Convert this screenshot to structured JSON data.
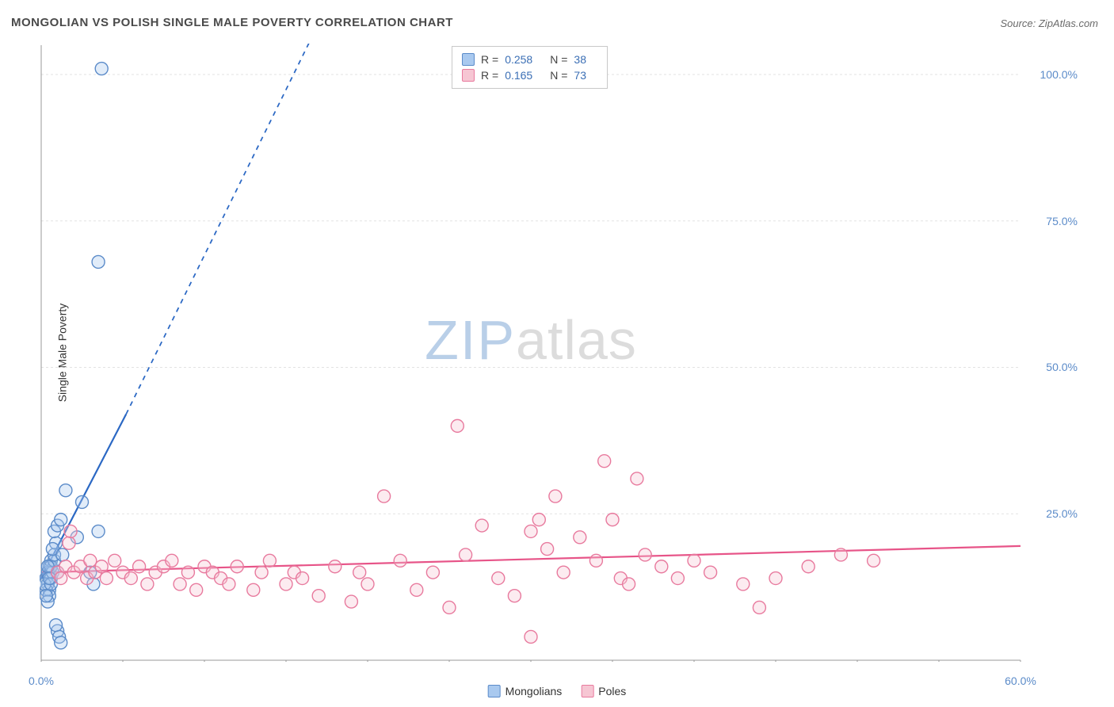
{
  "title": "MONGOLIAN VS POLISH SINGLE MALE POVERTY CORRELATION CHART",
  "source": "Source: ZipAtlas.com",
  "ylabel": "Single Male Poverty",
  "watermark": {
    "zip": "ZIP",
    "atlas": "atlas"
  },
  "chart": {
    "type": "scatter",
    "xlim": [
      0,
      60
    ],
    "ylim": [
      0,
      105
    ],
    "background_color": "#ffffff",
    "grid_color": "#e2e2e2",
    "axis_color": "#999999",
    "tick_label_color": "#5b8bc9",
    "x_ticks": [
      0,
      5,
      10,
      15,
      20,
      25,
      30,
      35,
      40,
      45,
      50,
      55,
      60
    ],
    "x_tick_labels": {
      "0": "0.0%",
      "60": "60.0%"
    },
    "y_ticks": [
      25,
      50,
      75,
      100
    ],
    "y_tick_labels": {
      "25": "25.0%",
      "50": "50.0%",
      "75": "75.0%",
      "100": "100.0%"
    },
    "marker_radius": 8,
    "marker_fill_opacity": 0.35,
    "marker_stroke_width": 1.4,
    "series": [
      {
        "name": "Mongolians",
        "color_fill": "#a9c9ef",
        "color_stroke": "#5b8bc9",
        "trend": {
          "x1": 0,
          "y1": 14,
          "x2": 5.2,
          "y2": 42,
          "solid_to_x": 5.2,
          "dash_to_x": 22,
          "dash_to_y": 137,
          "color": "#2b68c4",
          "width": 2.2
        },
        "r": "0.258",
        "n": "38",
        "points": [
          [
            0.3,
            14
          ],
          [
            0.4,
            15
          ],
          [
            0.5,
            16
          ],
          [
            0.4,
            13
          ],
          [
            0.5,
            12
          ],
          [
            0.6,
            17
          ],
          [
            0.6,
            14
          ],
          [
            0.7,
            15
          ],
          [
            0.6,
            16
          ],
          [
            0.8,
            17
          ],
          [
            0.9,
            20
          ],
          [
            1.0,
            15
          ],
          [
            0.8,
            22
          ],
          [
            1.0,
            23
          ],
          [
            1.2,
            24
          ],
          [
            1.5,
            29
          ],
          [
            2.2,
            21
          ],
          [
            2.5,
            27
          ],
          [
            3.0,
            15
          ],
          [
            3.2,
            13
          ],
          [
            3.5,
            22
          ],
          [
            0.3,
            12
          ],
          [
            0.5,
            11
          ],
          [
            0.4,
            10
          ],
          [
            3.5,
            68
          ],
          [
            3.7,
            101
          ],
          [
            1.0,
            5
          ],
          [
            1.1,
            4
          ],
          [
            1.2,
            3
          ],
          [
            0.9,
            6
          ],
          [
            0.8,
            18
          ],
          [
            0.7,
            19
          ],
          [
            0.2,
            13
          ],
          [
            0.3,
            11
          ],
          [
            0.6,
            13
          ],
          [
            1.3,
            18
          ],
          [
            0.4,
            16
          ],
          [
            0.5,
            14
          ]
        ]
      },
      {
        "name": "Poles",
        "color_fill": "#f6c6d3",
        "color_stroke": "#e87a9e",
        "trend": {
          "x1": 0,
          "y1": 15,
          "x2": 60,
          "y2": 19.5,
          "color": "#e75488",
          "width": 2.2
        },
        "r": "0.165",
        "n": "73",
        "points": [
          [
            1.0,
            15
          ],
          [
            1.2,
            14
          ],
          [
            1.5,
            16
          ],
          [
            1.7,
            20
          ],
          [
            1.8,
            22
          ],
          [
            2.0,
            15
          ],
          [
            2.4,
            16
          ],
          [
            2.8,
            14
          ],
          [
            3.0,
            17
          ],
          [
            3.3,
            15
          ],
          [
            3.7,
            16
          ],
          [
            4.0,
            14
          ],
          [
            4.5,
            17
          ],
          [
            5.0,
            15
          ],
          [
            5.5,
            14
          ],
          [
            6.0,
            16
          ],
          [
            6.5,
            13
          ],
          [
            7.0,
            15
          ],
          [
            7.5,
            16
          ],
          [
            8.0,
            17
          ],
          [
            8.5,
            13
          ],
          [
            9.0,
            15
          ],
          [
            9.5,
            12
          ],
          [
            10.0,
            16
          ],
          [
            10.5,
            15
          ],
          [
            11.0,
            14
          ],
          [
            11.5,
            13
          ],
          [
            12.0,
            16
          ],
          [
            13.0,
            12
          ],
          [
            13.5,
            15
          ],
          [
            14.0,
            17
          ],
          [
            15.0,
            13
          ],
          [
            15.5,
            15
          ],
          [
            16.0,
            14
          ],
          [
            17.0,
            11
          ],
          [
            18.0,
            16
          ],
          [
            19.0,
            10
          ],
          [
            19.5,
            15
          ],
          [
            20.0,
            13
          ],
          [
            21.0,
            28
          ],
          [
            22.0,
            17
          ],
          [
            23.0,
            12
          ],
          [
            24.0,
            15
          ],
          [
            25.0,
            9
          ],
          [
            25.5,
            40
          ],
          [
            26.0,
            18
          ],
          [
            27.0,
            23
          ],
          [
            28.0,
            14
          ],
          [
            29.0,
            11
          ],
          [
            30.0,
            22
          ],
          [
            30.5,
            24
          ],
          [
            31.0,
            19
          ],
          [
            31.5,
            28
          ],
          [
            32.0,
            15
          ],
          [
            33.0,
            21
          ],
          [
            34.0,
            17
          ],
          [
            34.5,
            34
          ],
          [
            35.0,
            24
          ],
          [
            35.5,
            14
          ],
          [
            36.0,
            13
          ],
          [
            36.5,
            31
          ],
          [
            37.0,
            18
          ],
          [
            38.0,
            16
          ],
          [
            39.0,
            14
          ],
          [
            40.0,
            17
          ],
          [
            41.0,
            15
          ],
          [
            43.0,
            13
          ],
          [
            44.0,
            9
          ],
          [
            45.0,
            14
          ],
          [
            47.0,
            16
          ],
          [
            49.0,
            18
          ],
          [
            51.0,
            17
          ],
          [
            30.0,
            4
          ]
        ]
      }
    ]
  },
  "legend_box": {
    "rows": [
      {
        "swatch_fill": "#a9c9ef",
        "swatch_stroke": "#5b8bc9",
        "r": "0.258",
        "n": "38"
      },
      {
        "swatch_fill": "#f6c6d3",
        "swatch_stroke": "#e87a9e",
        "r": "0.165",
        "n": "73"
      }
    ]
  },
  "legend_bottom": [
    {
      "label": "Mongolians",
      "fill": "#a9c9ef",
      "stroke": "#5b8bc9"
    },
    {
      "label": "Poles",
      "fill": "#f6c6d3",
      "stroke": "#e87a9e"
    }
  ]
}
